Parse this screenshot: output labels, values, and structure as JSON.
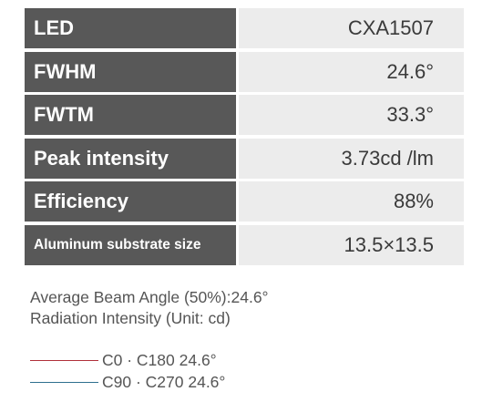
{
  "specs": [
    {
      "label": "LED",
      "value": "CXA1507"
    },
    {
      "label": "FWHM",
      "value": "24.6°"
    },
    {
      "label": "FWTM",
      "value": "33.3°"
    },
    {
      "label": "Peak intensity",
      "value": "3.73cd /lm"
    },
    {
      "label": "Efficiency",
      "value": "88%"
    },
    {
      "label": "Aluminum substrate size",
      "value": "13.5×13.5"
    }
  ],
  "notes": {
    "beam_angle": "Average Beam Angle (50%):24.6°",
    "radiation": "Radiation Intensity (Unit: cd)"
  },
  "legend": [
    {
      "label": "C0 · C180 24.6°",
      "color": "#b0303a"
    },
    {
      "label": "C90 · C270 24.6°",
      "color": "#2f6f8f"
    }
  ]
}
